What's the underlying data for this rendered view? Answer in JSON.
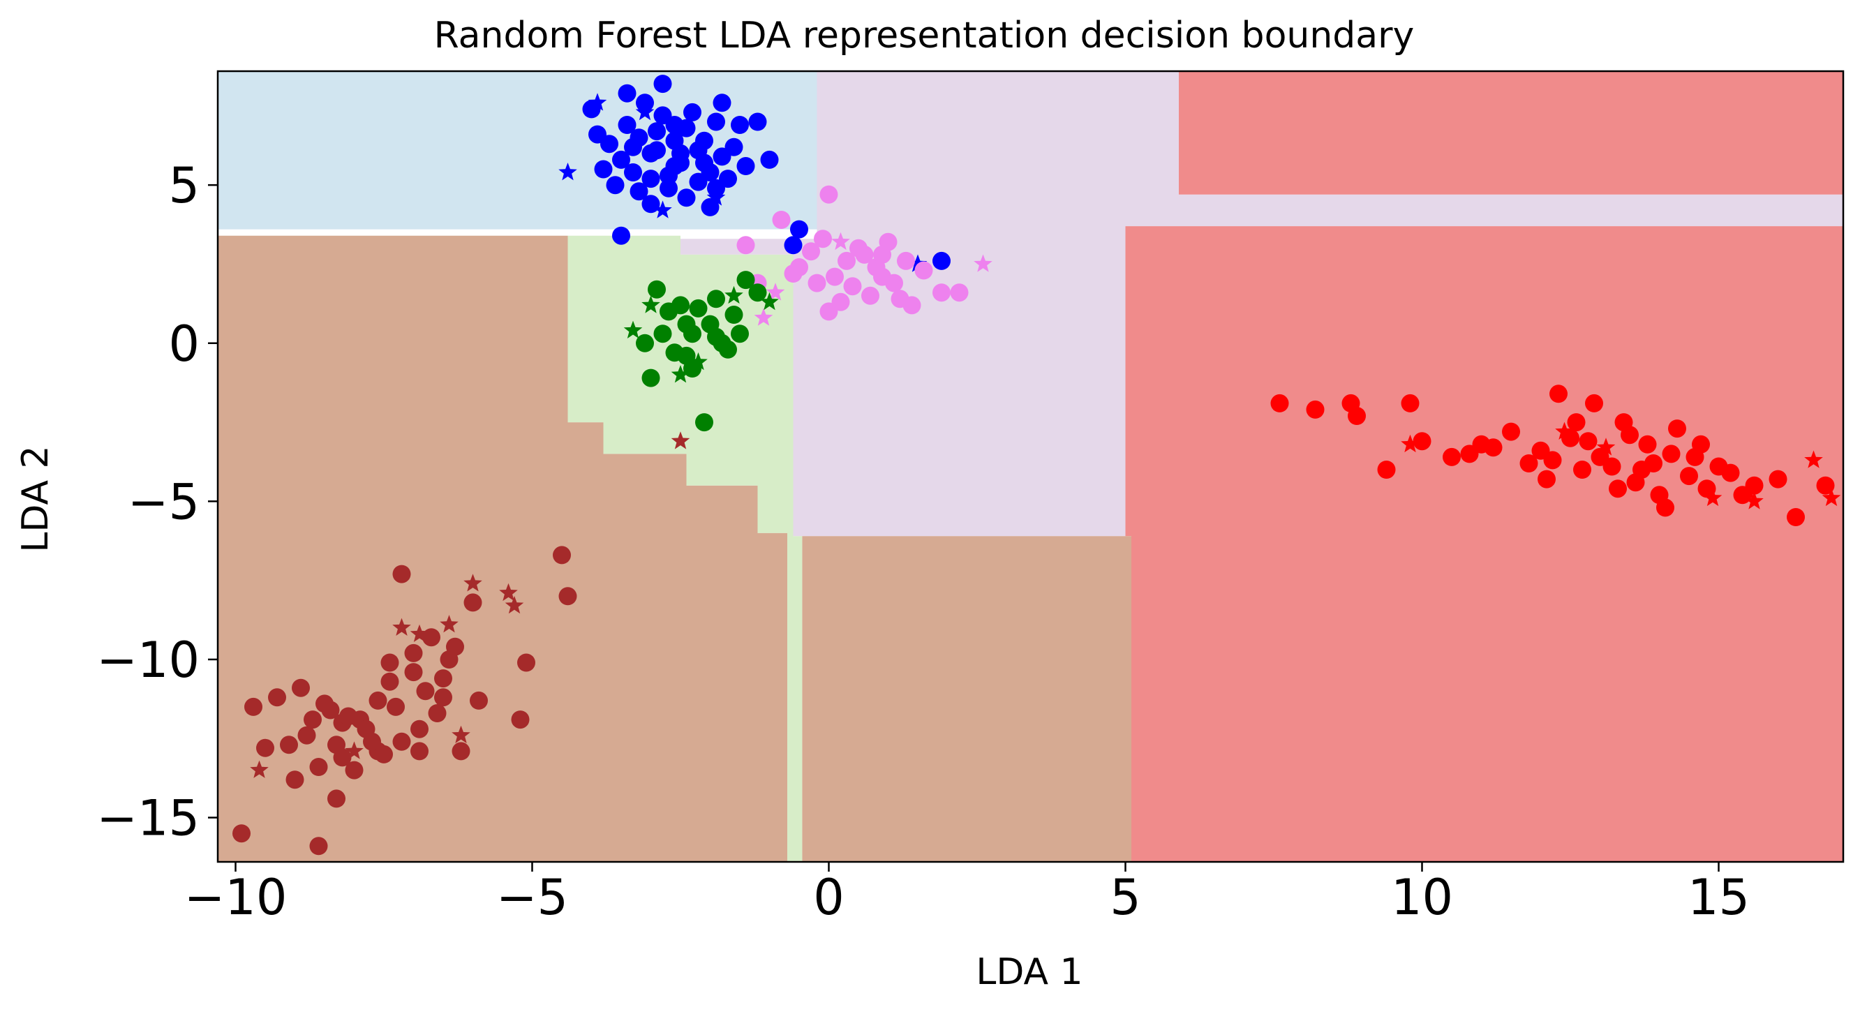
{
  "chart_data": {
    "type": "scatter",
    "title": "Random Forest LDA representation decision boundary",
    "xlabel": "LDA 1",
    "ylabel": "LDA 2",
    "xlim": [
      -10.3,
      17.1
    ],
    "ylim": [
      -16.4,
      8.6
    ],
    "xticks": [
      -10,
      -5,
      0,
      5,
      10,
      15
    ],
    "xtick_labels": [
      "−10",
      "−5",
      "0",
      "5",
      "10",
      "15"
    ],
    "yticks": [
      -15,
      -10,
      -5,
      0,
      5
    ],
    "ytick_labels": [
      "−15",
      "−10",
      "−5",
      "0",
      "5"
    ],
    "grid": false,
    "legend": "none",
    "region_colors": {
      "blue": "#d1e5f0",
      "pink": "#e5d8ea",
      "red": "#f08b8b",
      "brown": "#d6aa92",
      "green": "#d7edc8"
    },
    "regions": [
      {
        "cls": "blue",
        "poly": [
          [
            -10.3,
            8.6
          ],
          [
            -0.2,
            8.6
          ],
          [
            -0.2,
            3.6
          ],
          [
            -10.3,
            3.6
          ]
        ]
      },
      {
        "cls": "blue",
        "poly": [
          [
            -0.2,
            3.6
          ],
          [
            5,
            3.6
          ],
          [
            5,
            2.4
          ],
          [
            -0.2,
            2.4
          ]
        ]
      },
      {
        "cls": "blue",
        "poly": [
          [
            2,
            8.6
          ],
          [
            2.4,
            8.6
          ],
          [
            2.4,
            4.7
          ],
          [
            2,
            4.7
          ]
        ]
      },
      {
        "cls": "pink",
        "poly": [
          [
            -0.2,
            8.6
          ],
          [
            5.9,
            8.6
          ],
          [
            5.9,
            4.7
          ],
          [
            17.1,
            4.7
          ],
          [
            17.1,
            3.7
          ],
          [
            5,
            3.7
          ],
          [
            5,
            -6.1
          ],
          [
            -0.6,
            -6.1
          ],
          [
            -0.6,
            3.3
          ],
          [
            -0.2,
            3.3
          ]
        ]
      },
      {
        "cls": "pink",
        "poly": [
          [
            -2.5,
            3.3
          ],
          [
            -0.6,
            3.3
          ],
          [
            -0.6,
            2.8
          ],
          [
            -2.5,
            2.8
          ]
        ]
      },
      {
        "cls": "red",
        "poly": [
          [
            5.9,
            8.6
          ],
          [
            17.1,
            8.6
          ],
          [
            17.1,
            4.7
          ],
          [
            5.9,
            4.7
          ]
        ]
      },
      {
        "cls": "red",
        "poly": [
          [
            5,
            3.7
          ],
          [
            17.1,
            3.7
          ],
          [
            17.1,
            -16.4
          ],
          [
            5.1,
            -16.4
          ],
          [
            5.1,
            -6.1
          ],
          [
            5,
            -6.1
          ]
        ]
      },
      {
        "cls": "brown",
        "poly": [
          [
            -10.3,
            3.4
          ],
          [
            -4.4,
            3.4
          ],
          [
            -4.4,
            -2.5
          ],
          [
            -3.8,
            -2.5
          ],
          [
            -3.8,
            -3.5
          ],
          [
            -2.4,
            -3.5
          ],
          [
            -2.4,
            -4.5
          ],
          [
            -1.2,
            -4.5
          ],
          [
            -1.2,
            -6.0
          ],
          [
            -0.7,
            -6.0
          ],
          [
            -0.7,
            -16.4
          ],
          [
            -10.3,
            -16.4
          ]
        ]
      },
      {
        "cls": "brown",
        "poly": [
          [
            -0.45,
            -6.1
          ],
          [
            5.1,
            -6.1
          ],
          [
            5.1,
            -16.4
          ],
          [
            -0.45,
            -16.4
          ]
        ]
      },
      {
        "cls": "green",
        "poly": [
          [
            -4.4,
            3.4
          ],
          [
            -2.5,
            3.4
          ],
          [
            -2.5,
            2.8
          ],
          [
            -0.6,
            2.8
          ],
          [
            -0.6,
            -6.1
          ],
          [
            -0.45,
            -6.1
          ],
          [
            -0.45,
            -16.4
          ],
          [
            -0.7,
            -16.4
          ],
          [
            -0.7,
            -6.0
          ],
          [
            -1.2,
            -6.0
          ],
          [
            -1.2,
            -4.5
          ],
          [
            -2.4,
            -4.5
          ],
          [
            -2.4,
            -3.5
          ],
          [
            -3.8,
            -3.5
          ],
          [
            -3.8,
            -2.5
          ],
          [
            -4.4,
            -2.5
          ]
        ]
      }
    ],
    "series": [
      {
        "color": "#0000ff",
        "points": [
          [
            -3.2,
            6.5
          ],
          [
            -2.8,
            7.2
          ],
          [
            -2.4,
            6.8
          ],
          [
            -2.9,
            6.1
          ],
          [
            -3.5,
            5.8
          ],
          [
            -2.1,
            6.4
          ],
          [
            -2.6,
            5.6
          ],
          [
            -3.0,
            5.2
          ],
          [
            -1.8,
            5.9
          ],
          [
            -3.4,
            6.9
          ],
          [
            -2.3,
            7.3
          ],
          [
            -2.0,
            5.4
          ],
          [
            -1.6,
            6.2
          ],
          [
            -3.7,
            6.3
          ],
          [
            -2.7,
            4.9
          ],
          [
            -3.1,
            7.6
          ],
          [
            -1.9,
            7.0
          ],
          [
            -2.5,
            6.0
          ],
          [
            -3.3,
            5.4
          ],
          [
            -2.2,
            5.1
          ],
          [
            -1.7,
            5.2
          ],
          [
            -3.6,
            5.0
          ],
          [
            -2.8,
            8.2
          ],
          [
            -1.5,
            6.9
          ],
          [
            -1.2,
            7.0
          ],
          [
            -1.0,
            5.8
          ],
          [
            -3.9,
            6.6
          ],
          [
            -4.0,
            7.4
          ],
          [
            -3.8,
            5.5
          ],
          [
            -2.4,
            4.6
          ],
          [
            -2.0,
            4.3
          ],
          [
            -3.0,
            4.4
          ],
          [
            -3.5,
            3.4
          ],
          [
            -1.9,
            4.9
          ],
          [
            -1.4,
            5.6
          ],
          [
            -3.4,
            7.9
          ],
          [
            -2.6,
            6.4
          ],
          [
            -3.0,
            6.0
          ],
          [
            -2.2,
            6.1
          ],
          [
            -2.7,
            5.3
          ],
          [
            -1.8,
            7.6
          ],
          [
            -3.2,
            4.8
          ],
          [
            -2.5,
            5.7
          ],
          [
            -2.9,
            6.7
          ],
          [
            -2.1,
            5.7
          ],
          [
            1.9,
            2.6
          ],
          [
            -0.5,
            3.6
          ],
          [
            -0.6,
            3.1
          ],
          [
            -2.6,
            6.9
          ],
          [
            -3.3,
            6.2
          ]
        ],
        "stars": [
          [
            -4.4,
            5.4
          ],
          [
            -3.9,
            7.6
          ],
          [
            -1.9,
            4.6
          ],
          [
            -2.8,
            4.2
          ],
          [
            -3.1,
            7.3
          ],
          [
            1.5,
            2.5
          ]
        ]
      },
      {
        "color": "#ee82ee",
        "points": [
          [
            0.3,
            2.6
          ],
          [
            0.9,
            2.1
          ],
          [
            -0.2,
            1.9
          ],
          [
            1.2,
            1.4
          ],
          [
            0.5,
            3.0
          ],
          [
            -0.5,
            2.4
          ],
          [
            1.6,
            2.3
          ],
          [
            0.0,
            4.7
          ],
          [
            -0.8,
            3.9
          ],
          [
            0.7,
            1.5
          ],
          [
            -1.4,
            3.1
          ],
          [
            1.9,
            1.6
          ],
          [
            0.2,
            1.3
          ],
          [
            1.0,
            3.2
          ],
          [
            -0.3,
            2.9
          ],
          [
            0.6,
            2.8
          ],
          [
            2.2,
            1.6
          ],
          [
            -1.2,
            1.9
          ],
          [
            1.3,
            2.6
          ],
          [
            0.1,
            2.1
          ],
          [
            0.8,
            2.4
          ],
          [
            0.0,
            1.0
          ],
          [
            1.4,
            1.2
          ],
          [
            -0.6,
            2.2
          ],
          [
            0.4,
            1.8
          ],
          [
            1.1,
            1.9
          ],
          [
            -0.1,
            3.3
          ],
          [
            0.9,
            2.8
          ]
        ],
        "stars": [
          [
            2.6,
            2.5
          ],
          [
            -1.1,
            0.8
          ],
          [
            -0.9,
            1.6
          ],
          [
            0.2,
            3.2
          ]
        ]
      },
      {
        "color": "#008000",
        "points": [
          [
            -2.9,
            1.7
          ],
          [
            -2.4,
            0.6
          ],
          [
            -1.9,
            0.2
          ],
          [
            -2.6,
            -0.3
          ],
          [
            -2.2,
            1.1
          ],
          [
            -1.6,
            0.9
          ],
          [
            -2.8,
            0.3
          ],
          [
            -3.0,
            -1.1
          ],
          [
            -2.3,
            -0.8
          ],
          [
            -2.1,
            -2.5
          ],
          [
            -1.4,
            2.0
          ],
          [
            -1.2,
            1.6
          ],
          [
            -1.7,
            -0.2
          ],
          [
            -2.5,
            1.2
          ],
          [
            -3.1,
            0.0
          ],
          [
            -1.9,
            1.4
          ],
          [
            -2.7,
            1.0
          ],
          [
            -2.0,
            0.6
          ],
          [
            -1.5,
            0.3
          ],
          [
            -2.4,
            -0.4
          ],
          [
            -1.8,
            0.0
          ],
          [
            -2.3,
            0.3
          ]
        ],
        "stars": [
          [
            -1.6,
            1.5
          ],
          [
            -2.5,
            -1.0
          ],
          [
            -2.2,
            -0.6
          ],
          [
            -1.0,
            1.3
          ],
          [
            -3.3,
            0.4
          ],
          [
            -3.0,
            1.2
          ]
        ]
      },
      {
        "color": "#ff0000",
        "points": [
          [
            7.6,
            -1.9
          ],
          [
            8.2,
            -2.1
          ],
          [
            8.8,
            -1.9
          ],
          [
            8.9,
            -2.3
          ],
          [
            9.8,
            -1.9
          ],
          [
            9.4,
            -4.0
          ],
          [
            10.0,
            -3.1
          ],
          [
            10.5,
            -3.6
          ],
          [
            11.0,
            -3.2
          ],
          [
            11.5,
            -2.8
          ],
          [
            12.0,
            -3.4
          ],
          [
            12.3,
            -1.6
          ],
          [
            12.6,
            -2.5
          ],
          [
            12.8,
            -3.1
          ],
          [
            12.9,
            -1.9
          ],
          [
            13.2,
            -3.9
          ],
          [
            13.4,
            -2.5
          ],
          [
            13.6,
            -4.4
          ],
          [
            13.8,
            -3.2
          ],
          [
            14.0,
            -4.8
          ],
          [
            14.2,
            -3.5
          ],
          [
            14.3,
            -2.7
          ],
          [
            14.5,
            -4.2
          ],
          [
            14.6,
            -3.6
          ],
          [
            14.8,
            -4.6
          ],
          [
            15.0,
            -3.9
          ],
          [
            15.2,
            -4.1
          ],
          [
            15.6,
            -4.5
          ],
          [
            16.0,
            -4.3
          ],
          [
            16.3,
            -5.5
          ],
          [
            16.8,
            -4.5
          ],
          [
            11.8,
            -3.8
          ],
          [
            12.1,
            -4.3
          ],
          [
            12.5,
            -3.0
          ],
          [
            13.0,
            -3.6
          ],
          [
            13.5,
            -2.9
          ],
          [
            13.9,
            -3.8
          ],
          [
            14.1,
            -5.2
          ],
          [
            14.7,
            -3.2
          ],
          [
            15.4,
            -4.8
          ],
          [
            12.7,
            -4.0
          ],
          [
            13.3,
            -4.6
          ],
          [
            11.2,
            -3.3
          ],
          [
            10.8,
            -3.5
          ],
          [
            12.2,
            -3.7
          ],
          [
            13.7,
            -4.0
          ]
        ],
        "stars": [
          [
            9.8,
            -3.2
          ],
          [
            16.6,
            -3.7
          ],
          [
            16.9,
            -4.9
          ],
          [
            15.5,
            -4.7
          ],
          [
            14.9,
            -4.9
          ],
          [
            15.6,
            -5.0
          ],
          [
            12.4,
            -2.8
          ],
          [
            13.1,
            -3.3
          ]
        ]
      },
      {
        "color": "#a52a2a",
        "points": [
          [
            -4.5,
            -6.7
          ],
          [
            -4.4,
            -8.0
          ],
          [
            -7.2,
            -7.3
          ],
          [
            -6.0,
            -8.2
          ],
          [
            -5.1,
            -10.1
          ],
          [
            -5.2,
            -11.9
          ],
          [
            -5.9,
            -11.3
          ],
          [
            -6.5,
            -10.6
          ],
          [
            -7.0,
            -9.8
          ],
          [
            -7.4,
            -10.7
          ],
          [
            -7.6,
            -11.3
          ],
          [
            -7.9,
            -11.9
          ],
          [
            -8.2,
            -12.0
          ],
          [
            -8.5,
            -11.4
          ],
          [
            -8.8,
            -12.4
          ],
          [
            -9.1,
            -12.7
          ],
          [
            -9.5,
            -12.8
          ],
          [
            -9.7,
            -11.5
          ],
          [
            -9.9,
            -15.5
          ],
          [
            -8.6,
            -15.9
          ],
          [
            -8.3,
            -14.4
          ],
          [
            -8.0,
            -13.5
          ],
          [
            -7.6,
            -12.9
          ],
          [
            -7.2,
            -12.6
          ],
          [
            -6.9,
            -12.2
          ],
          [
            -6.6,
            -11.7
          ],
          [
            -6.4,
            -10.0
          ],
          [
            -6.2,
            -12.9
          ],
          [
            -8.6,
            -13.4
          ],
          [
            -9.0,
            -13.8
          ],
          [
            -7.8,
            -12.2
          ],
          [
            -7.3,
            -11.5
          ],
          [
            -6.8,
            -11.0
          ],
          [
            -8.1,
            -11.8
          ],
          [
            -8.4,
            -11.6
          ],
          [
            -7.0,
            -10.4
          ],
          [
            -6.7,
            -9.3
          ],
          [
            -8.9,
            -10.9
          ],
          [
            -9.3,
            -11.2
          ],
          [
            -7.5,
            -13.0
          ],
          [
            -8.2,
            -13.1
          ],
          [
            -6.9,
            -12.9
          ],
          [
            -7.7,
            -12.6
          ],
          [
            -8.7,
            -11.9
          ],
          [
            -6.5,
            -11.2
          ],
          [
            -7.4,
            -10.1
          ],
          [
            -8.3,
            -12.7
          ],
          [
            -6.3,
            -9.6
          ]
        ],
        "stars": [
          [
            -5.4,
            -7.9
          ],
          [
            -5.3,
            -8.3
          ],
          [
            -6.0,
            -7.6
          ],
          [
            -6.4,
            -8.9
          ],
          [
            -6.9,
            -9.2
          ],
          [
            -7.2,
            -9.0
          ],
          [
            -9.6,
            -13.5
          ],
          [
            -8.0,
            -12.9
          ],
          [
            -2.5,
            -3.1
          ],
          [
            -6.2,
            -12.4
          ]
        ]
      }
    ]
  }
}
